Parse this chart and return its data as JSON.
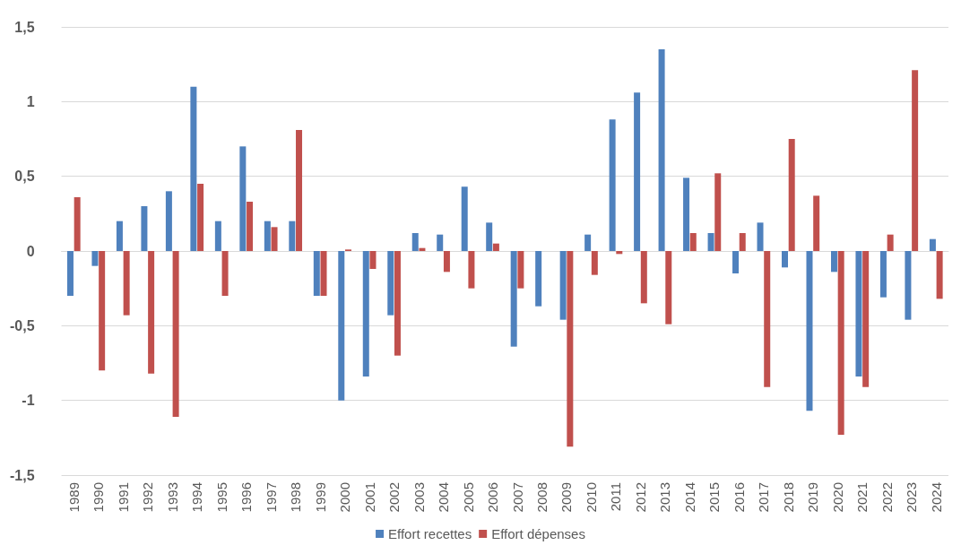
{
  "chart_data": {
    "type": "bar",
    "categories": [
      "1989",
      "1990",
      "1991",
      "1992",
      "1993",
      "1994",
      "1995",
      "1996",
      "1997",
      "1998",
      "1999",
      "2000",
      "2001",
      "2002",
      "2003",
      "2004",
      "2005",
      "2006",
      "2007",
      "2008",
      "2009",
      "2010",
      "2011",
      "2012",
      "2013",
      "2014",
      "2015",
      "2016",
      "2017",
      "2018",
      "2019",
      "2020",
      "2021",
      "2022",
      "2023",
      "2024"
    ],
    "series": [
      {
        "name": "Effort recettes",
        "color": "#4f81bd",
        "values": [
          -0.3,
          -0.1,
          0.2,
          0.3,
          0.4,
          1.1,
          0.2,
          0.7,
          0.2,
          0.2,
          -0.3,
          -1.0,
          -0.84,
          -0.43,
          0.12,
          0.11,
          0.43,
          0.19,
          -0.64,
          -0.37,
          -0.46,
          0.11,
          0.88,
          1.06,
          1.35,
          0.49,
          0.12,
          -0.15,
          0.19,
          -0.11,
          -1.07,
          -0.14,
          -0.84,
          -0.31,
          -0.46,
          0.08
        ]
      },
      {
        "name": "Effort dépenses",
        "color": "#c0504d",
        "values": [
          0.36,
          -0.8,
          -0.43,
          -0.82,
          -1.11,
          0.45,
          -0.3,
          0.33,
          0.16,
          0.81,
          -0.3,
          0.01,
          -0.12,
          -0.7,
          0.02,
          -0.14,
          -0.25,
          0.05,
          -0.25,
          0,
          -1.31,
          -0.16,
          -0.02,
          -0.35,
          -0.49,
          0.12,
          0.52,
          0.12,
          -0.91,
          0.75,
          0.37,
          -1.23,
          -0.91,
          0.11,
          1.21,
          -0.32
        ]
      }
    ],
    "ylim": [
      -1.5,
      1.5
    ],
    "yticks": [
      {
        "value": -1.5,
        "label": "-1,5"
      },
      -1,
      {
        "value": -0.5,
        "label": "-0,5"
      },
      0,
      {
        "value": 0.5,
        "label": "0,5"
      },
      1,
      {
        "value": 1.5,
        "label": "1,5"
      }
    ],
    "grid": "y",
    "legend": "bottom"
  }
}
